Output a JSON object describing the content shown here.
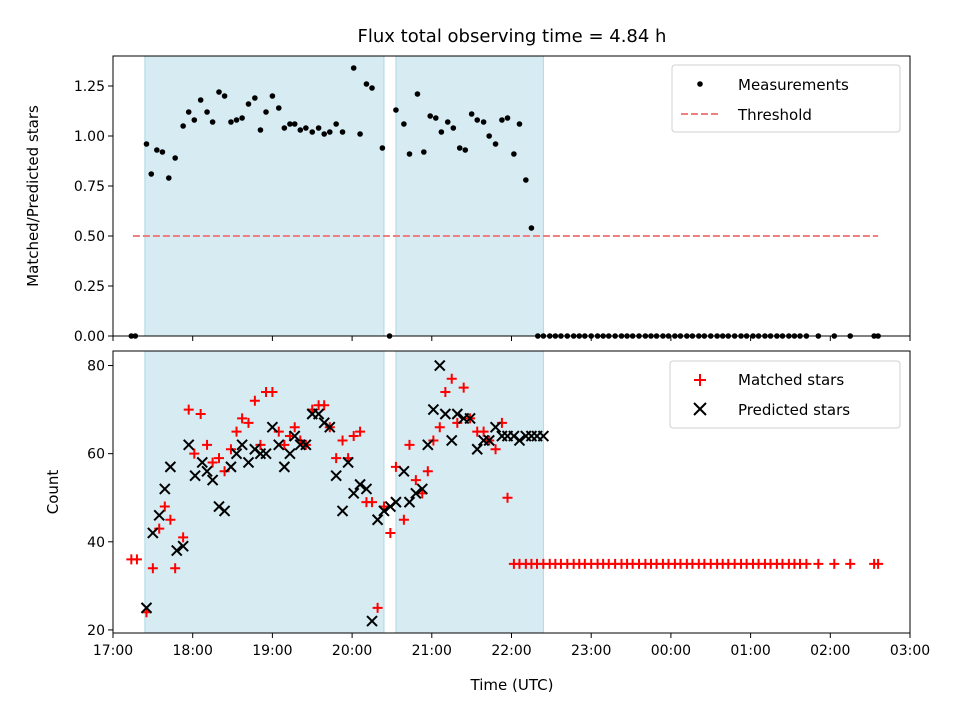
{
  "chart_data": [
    {
      "type": "scatter",
      "title": "Flux total observing time = 4.84 h",
      "xlabel": "",
      "ylabel": "Matched/Predicted stars",
      "xlim": [
        17.0,
        27.0
      ],
      "ylim": [
        0.0,
        1.4
      ],
      "yticks": [
        0.0,
        0.25,
        0.5,
        0.75,
        1.0,
        1.25
      ],
      "ytick_labels": [
        "0.00",
        "0.25",
        "0.50",
        "0.75",
        "1.00",
        "1.25"
      ],
      "xticks": [
        17,
        18,
        19,
        20,
        21,
        22,
        23,
        24,
        25,
        26,
        27
      ],
      "show_xtick_labels": false,
      "legend": {
        "position": "top-right",
        "entries": [
          "Measurements",
          "Threshold"
        ]
      },
      "observing_spans": [
        [
          17.4,
          20.4
        ],
        [
          20.55,
          22.4
        ]
      ],
      "threshold": {
        "name": "Threshold",
        "value": 0.5,
        "x_range": [
          17.25,
          26.6
        ],
        "color": "#f08080"
      },
      "series": [
        {
          "name": "Measurements",
          "color": "#000000",
          "x": [
            17.23,
            17.28,
            17.42,
            17.48,
            17.55,
            17.62,
            17.7,
            17.78,
            17.88,
            17.95,
            18.02,
            18.1,
            18.18,
            18.25,
            18.33,
            18.4,
            18.48,
            18.55,
            18.62,
            18.7,
            18.78,
            18.85,
            18.92,
            19.0,
            19.08,
            19.15,
            19.22,
            19.28,
            19.35,
            19.42,
            19.5,
            19.58,
            19.65,
            19.72,
            19.8,
            19.88,
            20.02,
            20.1,
            20.18,
            20.25,
            20.38,
            20.47,
            20.55,
            20.65,
            20.72,
            20.82,
            20.9,
            20.98,
            21.05,
            21.12,
            21.2,
            21.27,
            21.35,
            21.42,
            21.5,
            21.57,
            21.65,
            21.72,
            21.8,
            21.88,
            21.95,
            22.03,
            22.1,
            22.18,
            22.25,
            22.33,
            22.4,
            22.48,
            22.55,
            22.62,
            22.7,
            22.78,
            22.85,
            22.92,
            23.0,
            23.08,
            23.15,
            23.22,
            23.3,
            23.38,
            23.45,
            23.52,
            23.6,
            23.68,
            23.75,
            23.82,
            23.9,
            23.97,
            24.05,
            24.12,
            24.2,
            24.27,
            24.35,
            24.42,
            24.5,
            24.58,
            24.65,
            24.72,
            24.8,
            24.88,
            24.95,
            25.03,
            25.1,
            25.18,
            25.25,
            25.33,
            25.4,
            25.48,
            25.55,
            25.62,
            25.7,
            25.85,
            26.05,
            26.25,
            26.55,
            26.6
          ],
          "y": [
            0.0,
            0.0,
            0.96,
            0.81,
            0.93,
            0.92,
            0.79,
            0.89,
            1.05,
            1.12,
            1.08,
            1.18,
            1.12,
            1.07,
            1.22,
            1.2,
            1.07,
            1.08,
            1.09,
            1.16,
            1.19,
            1.03,
            1.12,
            1.2,
            1.14,
            1.04,
            1.06,
            1.06,
            1.03,
            1.04,
            1.02,
            1.04,
            1.01,
            1.02,
            1.06,
            1.02,
            1.34,
            1.01,
            1.26,
            1.24,
            0.94,
            0.0,
            1.13,
            1.06,
            0.91,
            1.21,
            0.92,
            1.1,
            1.09,
            1.02,
            1.07,
            1.04,
            0.94,
            0.93,
            1.11,
            1.08,
            1.07,
            1.0,
            0.96,
            1.08,
            1.09,
            0.91,
            1.06,
            0.78,
            0.54,
            0.0,
            0.0,
            0.0,
            0.0,
            0.0,
            0.0,
            0.0,
            0.0,
            0.0,
            0.0,
            0.0,
            0.0,
            0.0,
            0.0,
            0.0,
            0.0,
            0.0,
            0.0,
            0.0,
            0.0,
            0.0,
            0.0,
            0.0,
            0.0,
            0.0,
            0.0,
            0.0,
            0.0,
            0.0,
            0.0,
            0.0,
            0.0,
            0.0,
            0.0,
            0.0,
            0.0,
            0.0,
            0.0,
            0.0,
            0.0,
            0.0,
            0.0,
            0.0,
            0.0,
            0.0,
            0.0,
            0.0,
            0.0,
            0.0,
            0.0,
            0.0
          ]
        }
      ]
    },
    {
      "type": "scatter",
      "title": "",
      "xlabel": "Time (UTC)",
      "ylabel": "Count",
      "xlim": [
        17.0,
        27.0
      ],
      "ylim": [
        19.3,
        83.3
      ],
      "yticks": [
        20,
        40,
        60,
        80
      ],
      "ytick_labels": [
        "20",
        "40",
        "60",
        "80"
      ],
      "xticks": [
        17,
        18,
        19,
        20,
        21,
        22,
        23,
        24,
        25,
        26,
        27
      ],
      "xtick_labels": [
        "17:00",
        "18:00",
        "19:00",
        "20:00",
        "21:00",
        "22:00",
        "23:00",
        "00:00",
        "01:00",
        "02:00",
        "03:00"
      ],
      "legend": {
        "position": "top-right",
        "entries": [
          "Matched stars",
          "Predicted stars"
        ]
      },
      "observing_spans": [
        [
          17.4,
          20.4
        ],
        [
          20.55,
          22.4
        ]
      ],
      "series": [
        {
          "name": "Matched stars",
          "marker": "plus",
          "color": "#ff0000",
          "x": [
            17.23,
            17.3,
            17.42,
            17.5,
            17.58,
            17.65,
            17.72,
            17.78,
            17.88,
            17.95,
            18.02,
            18.1,
            18.18,
            18.25,
            18.33,
            18.4,
            18.48,
            18.55,
            18.62,
            18.7,
            18.78,
            18.85,
            18.92,
            19.0,
            19.08,
            19.15,
            19.22,
            19.28,
            19.35,
            19.42,
            19.5,
            19.58,
            19.65,
            19.72,
            19.8,
            19.88,
            19.95,
            20.02,
            20.1,
            20.18,
            20.25,
            20.32,
            20.4,
            20.48,
            20.55,
            20.65,
            20.72,
            20.8,
            20.88,
            20.95,
            21.02,
            21.1,
            21.17,
            21.25,
            21.32,
            21.4,
            21.48,
            21.57,
            21.65,
            21.72,
            21.8,
            21.88,
            21.95,
            22.03,
            22.1,
            22.18,
            22.25,
            22.32,
            22.4,
            22.48,
            22.55,
            22.62,
            22.7,
            22.78,
            22.85,
            22.92,
            23.0,
            23.08,
            23.15,
            23.22,
            23.3,
            23.38,
            23.45,
            23.52,
            23.6,
            23.68,
            23.75,
            23.82,
            23.9,
            23.97,
            24.05,
            24.12,
            24.2,
            24.27,
            24.35,
            24.42,
            24.5,
            24.58,
            24.65,
            24.72,
            24.8,
            24.88,
            24.95,
            25.03,
            25.1,
            25.18,
            25.25,
            25.33,
            25.4,
            25.48,
            25.55,
            25.62,
            25.7,
            25.85,
            26.05,
            26.25,
            26.55,
            26.6
          ],
          "y": [
            36,
            36,
            24,
            34,
            43,
            48,
            45,
            34,
            41,
            70,
            60,
            69,
            62,
            58,
            59,
            56,
            61,
            65,
            68,
            67,
            72,
            62,
            74,
            74,
            65,
            62,
            64,
            66,
            63,
            62,
            70,
            71,
            71,
            66,
            59,
            63,
            59,
            64,
            65,
            49,
            49,
            25,
            48,
            42,
            57,
            45,
            62,
            54,
            51,
            56,
            63,
            66,
            74,
            77,
            67,
            75,
            68,
            65,
            65,
            63,
            61,
            67,
            50,
            35,
            35,
            35,
            35,
            35,
            35,
            35,
            35,
            35,
            35,
            35,
            35,
            35,
            35,
            35,
            35,
            35,
            35,
            35,
            35,
            35,
            35,
            35,
            35,
            35,
            35,
            35,
            35,
            35,
            35,
            35,
            35,
            35,
            35,
            35,
            35,
            35,
            35,
            35,
            35,
            35,
            35,
            35,
            35,
            35,
            35,
            35,
            35,
            35,
            35,
            35,
            35,
            35,
            35,
            35
          ]
        },
        {
          "name": "Predicted stars",
          "marker": "x",
          "color": "#000000",
          "x": [
            17.42,
            17.5,
            17.58,
            17.65,
            17.72,
            17.8,
            17.88,
            17.95,
            18.03,
            18.12,
            18.18,
            18.25,
            18.33,
            18.4,
            18.48,
            18.55,
            18.62,
            18.7,
            18.78,
            18.85,
            18.92,
            19.0,
            19.08,
            19.15,
            19.22,
            19.28,
            19.35,
            19.42,
            19.5,
            19.58,
            19.65,
            19.72,
            19.8,
            19.88,
            19.95,
            20.02,
            20.1,
            20.18,
            20.25,
            20.32,
            20.4,
            20.48,
            20.55,
            20.65,
            20.72,
            20.8,
            20.88,
            20.95,
            21.02,
            21.1,
            21.17,
            21.25,
            21.32,
            21.4,
            21.48,
            21.57,
            21.65,
            21.72,
            21.8,
            21.88,
            21.95,
            22.03,
            22.1,
            22.18,
            22.25,
            22.32,
            22.4
          ],
          "y": [
            25,
            42,
            46,
            52,
            57,
            38,
            39,
            62,
            55,
            58,
            56,
            54,
            48,
            47,
            57,
            60,
            62,
            58,
            61,
            60,
            60,
            66,
            62,
            57,
            60,
            64,
            62,
            62,
            69,
            69,
            67,
            66,
            55,
            47,
            58,
            51,
            53,
            52,
            22,
            45,
            47,
            48,
            49,
            56,
            49,
            51,
            52,
            62,
            70,
            80,
            69,
            63,
            69,
            68,
            68,
            61,
            63,
            63,
            66,
            64,
            64,
            64,
            63,
            64,
            64,
            64,
            64
          ]
        }
      ]
    }
  ]
}
